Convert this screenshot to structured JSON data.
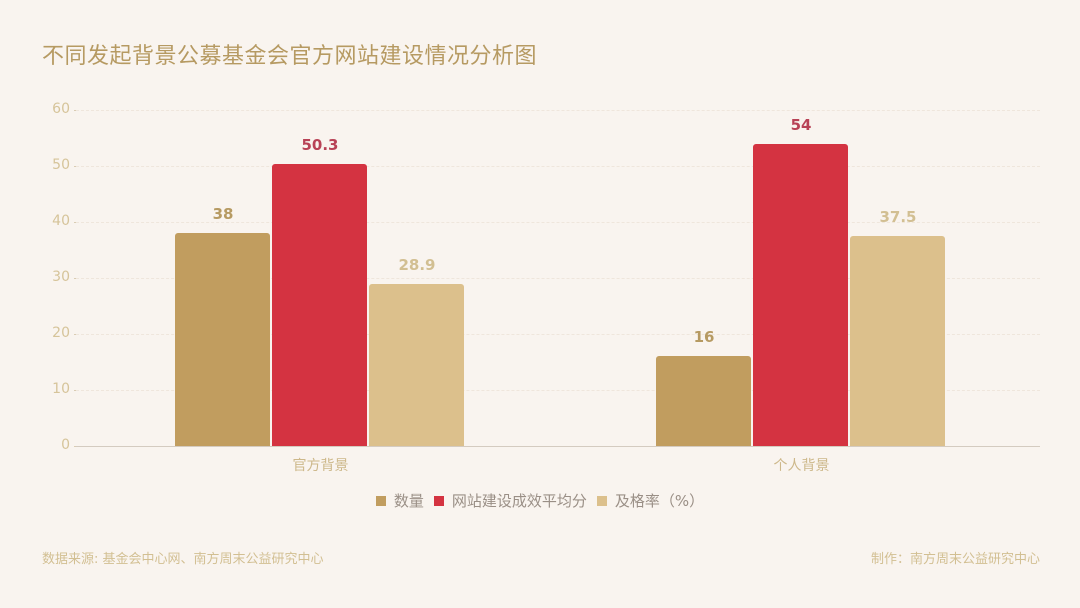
{
  "title": "不同发起背景公募基金会官方网站建设情况分析图",
  "colors": {
    "background": "#f9f4ef",
    "series_0": "#c19d5f",
    "series_1": "#d43341",
    "series_2": "#dcc08c",
    "label_0": "#b69a62",
    "label_1": "#b84256",
    "label_2": "#d2bf92"
  },
  "chart_data": {
    "type": "bar",
    "title": "不同发起背景公募基金会官方网站建设情况分析图",
    "categories": [
      "官方背景",
      "个人背景"
    ],
    "series": [
      {
        "name": "数量",
        "values": [
          38,
          16
        ]
      },
      {
        "name": "网站建设成效平均分",
        "values": [
          50.3,
          54
        ]
      },
      {
        "name": "及格率（%）",
        "values": [
          28.9,
          37.5
        ]
      }
    ],
    "value_labels": [
      [
        "38",
        "16"
      ],
      [
        "50.3",
        "54"
      ],
      [
        "28.9",
        "37.5"
      ]
    ],
    "xlabel": "",
    "ylabel": "",
    "ylim": [
      0,
      60
    ],
    "yticks": [
      "0",
      "10",
      "20",
      "30",
      "40",
      "50",
      "60"
    ],
    "grid": true,
    "legend_position": "bottom"
  },
  "footer": {
    "source": "数据来源: 基金会中心网、南方周末公益研究中心",
    "credit": "制作：南方周末公益研究中心"
  }
}
